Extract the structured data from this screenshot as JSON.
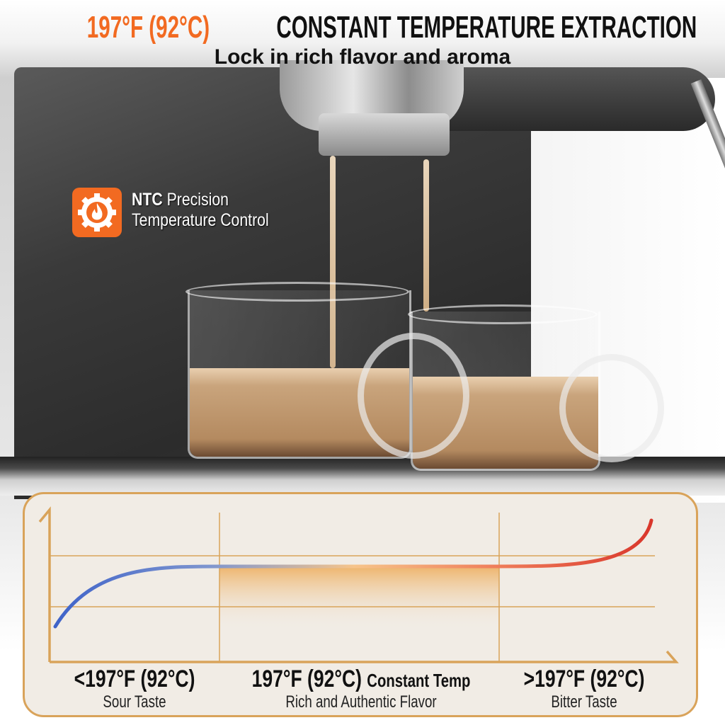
{
  "header": {
    "title_highlight": "197°F (92°C)",
    "title_rest": "CONSTANT TEMPERATURE EXTRACTION",
    "subtitle": "Lock in rich flavor and aroma"
  },
  "feature": {
    "icon": "gear-flame-icon",
    "title_bold": "NTC",
    "title_rest": "Precision",
    "line2": "Temperature Control"
  },
  "colors": {
    "accent": "#f26a21",
    "chart_border": "#d9a35a",
    "chart_bg": "#f1ece5",
    "curve_cold": "#3f63c9",
    "curve_mid": "#f6c48a",
    "curve_hot": "#d9362b"
  },
  "diagram": {
    "zones": [
      {
        "temp": "<197°F (92°C)",
        "extra": "",
        "taste": "Sour Taste"
      },
      {
        "temp": "197°F (92°C)",
        "extra": "Constant Temp",
        "taste": "Rich and Authentic Flavor"
      },
      {
        "temp": ">197°F (92°C)",
        "extra": "",
        "taste": "Bitter Taste"
      }
    ]
  }
}
